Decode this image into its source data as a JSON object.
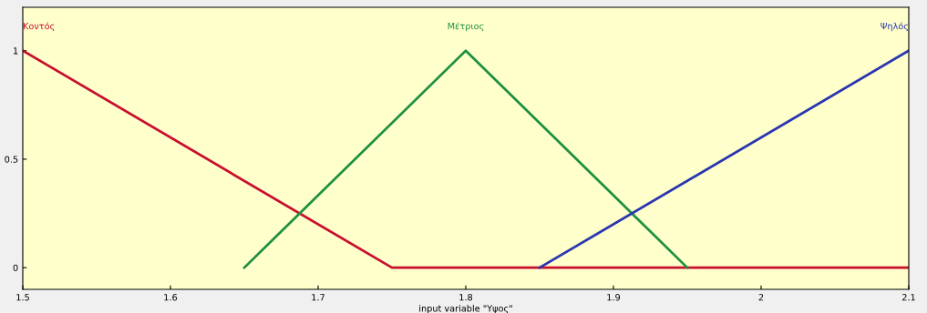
{
  "chart_data": {
    "type": "line",
    "xlabel": "input variable \"Υψος\"",
    "series": [
      {
        "name": "Κοντός",
        "color": "#c8102e",
        "x": [
          1.5,
          1.75,
          2.1
        ],
        "values": [
          1,
          0,
          0
        ]
      },
      {
        "name": "Μέτριος",
        "color": "#1e9040",
        "x": [
          1.65,
          1.8,
          1.95
        ],
        "values": [
          0,
          1,
          0
        ]
      },
      {
        "name": "Ψηλός",
        "color": "#2a35b0",
        "x": [
          1.85,
          2.1
        ],
        "values": [
          0,
          1
        ]
      }
    ],
    "xlim": [
      1.5,
      2.1
    ],
    "ylim": [
      -0.1,
      1.2
    ],
    "xticks": [
      1.5,
      1.6,
      1.7,
      1.8,
      1.9,
      {
        "value": 2.0,
        "label": "2"
      },
      2.1
    ],
    "yticks": [
      0,
      0.5,
      1
    ],
    "grid": false,
    "legend": false,
    "marker": "none",
    "line_style": "solid"
  }
}
